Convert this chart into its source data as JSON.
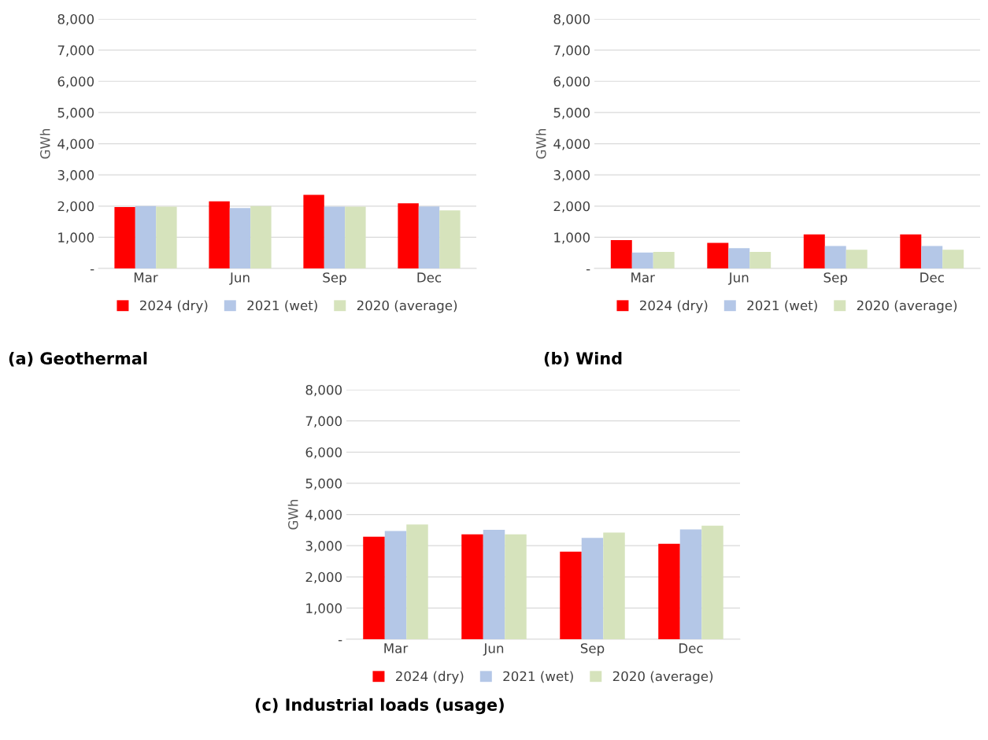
{
  "chart_data": [
    {
      "type": "bar",
      "title": "(a) Geothermal",
      "ylabel": "GWh",
      "categories": [
        "Mar",
        "Jun",
        "Sep",
        "Dec"
      ],
      "series": [
        {
          "name": "2024 (dry)",
          "color": "#ff0000",
          "values": [
            1970,
            2150,
            2360,
            2090
          ]
        },
        {
          "name": "2021 (wet)",
          "color": "#b4c7e7",
          "values": [
            2000,
            1940,
            1980,
            1990
          ]
        },
        {
          "name": "2020 (average)",
          "color": "#d6e3bc",
          "values": [
            1980,
            2000,
            1980,
            1860
          ]
        }
      ],
      "ylim": [
        0,
        8000
      ],
      "yticks": [
        {
          "value": 0,
          "label": "-"
        },
        {
          "value": 1000,
          "label": "1,000"
        },
        {
          "value": 2000,
          "label": "2,000"
        },
        {
          "value": 3000,
          "label": "3,000"
        },
        {
          "value": 4000,
          "label": "4,000"
        },
        {
          "value": 5000,
          "label": "5,000"
        },
        {
          "value": 6000,
          "label": "6,000"
        },
        {
          "value": 7000,
          "label": "7,000"
        },
        {
          "value": 8000,
          "label": "8,000"
        }
      ],
      "grid": "y",
      "legend": "bottom"
    },
    {
      "type": "bar",
      "title": "(b) Wind",
      "ylabel": "GWh",
      "categories": [
        "Mar",
        "Jun",
        "Sep",
        "Dec"
      ],
      "series": [
        {
          "name": "2024 (dry)",
          "color": "#ff0000",
          "values": [
            910,
            820,
            1090,
            1090
          ]
        },
        {
          "name": "2021 (wet)",
          "color": "#b4c7e7",
          "values": [
            510,
            650,
            720,
            720
          ]
        },
        {
          "name": "2020 (average)",
          "color": "#d6e3bc",
          "values": [
            530,
            530,
            600,
            600
          ]
        }
      ],
      "ylim": [
        0,
        8000
      ],
      "yticks": [
        {
          "value": 0,
          "label": "-"
        },
        {
          "value": 1000,
          "label": "1,000"
        },
        {
          "value": 2000,
          "label": "2,000"
        },
        {
          "value": 3000,
          "label": "3,000"
        },
        {
          "value": 4000,
          "label": "4,000"
        },
        {
          "value": 5000,
          "label": "5,000"
        },
        {
          "value": 6000,
          "label": "6,000"
        },
        {
          "value": 7000,
          "label": "7,000"
        },
        {
          "value": 8000,
          "label": "8,000"
        }
      ],
      "grid": "y",
      "legend": "bottom"
    },
    {
      "type": "bar",
      "title": "(c) Industrial loads (usage)",
      "ylabel": "GWh",
      "categories": [
        "Mar",
        "Jun",
        "Sep",
        "Dec"
      ],
      "series": [
        {
          "name": "2024 (dry)",
          "color": "#ff0000",
          "values": [
            3290,
            3360,
            2810,
            3060
          ]
        },
        {
          "name": "2021 (wet)",
          "color": "#b4c7e7",
          "values": [
            3470,
            3510,
            3250,
            3520
          ]
        },
        {
          "name": "2020 (average)",
          "color": "#d6e3bc",
          "values": [
            3680,
            3360,
            3420,
            3640
          ]
        }
      ],
      "ylim": [
        0,
        8000
      ],
      "yticks": [
        {
          "value": 0,
          "label": "-"
        },
        {
          "value": 1000,
          "label": "1,000"
        },
        {
          "value": 2000,
          "label": "2,000"
        },
        {
          "value": 3000,
          "label": "3,000"
        },
        {
          "value": 4000,
          "label": "4,000"
        },
        {
          "value": 5000,
          "label": "5,000"
        },
        {
          "value": 6000,
          "label": "6,000"
        },
        {
          "value": 7000,
          "label": "7,000"
        },
        {
          "value": 8000,
          "label": "8,000"
        }
      ],
      "grid": "y",
      "legend": "bottom"
    }
  ]
}
